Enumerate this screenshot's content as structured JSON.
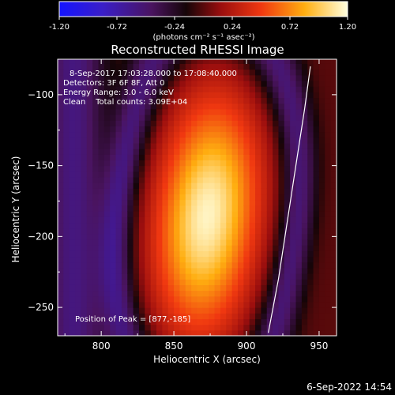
{
  "colorbar": {
    "tick_labels": [
      "-1.20",
      "-0.72",
      "-0.24",
      "0.24",
      "0.72",
      "1.20"
    ],
    "units_label": "(photons cm⁻² s⁻¹ asec⁻²)"
  },
  "chart_data": {
    "type": "heatmap",
    "title": "Reconstructed RHESSI Image",
    "xlabel": "Heliocentric X (arcsec)",
    "ylabel": "Heliocentric Y (arcsec)",
    "xlim": [
      770,
      962
    ],
    "ylim": [
      -270,
      -75
    ],
    "x_ticks": [
      800,
      850,
      900,
      950
    ],
    "y_ticks": [
      -100,
      -150,
      -200,
      -250
    ],
    "x_tick_labels": [
      "800",
      "850",
      "900",
      "950"
    ],
    "y_tick_labels": [
      "−100",
      "−150",
      "−200",
      "−250"
    ],
    "colorbar_range": [
      -1.2,
      1.2
    ],
    "colormap": "blue-purple-red-yellow-white",
    "peak": [
      877,
      -185
    ],
    "info_lines": [
      "8-Sep-2017 17:03:28.000 to 17:08:40.000",
      "Detectors: 3F 6F 8F, Att 0",
      "Energy Range: 3.0 - 6.0 keV",
      "Clean    Total counts: 3.09E+04"
    ],
    "peak_label": "Position of Peak = [877,-185]",
    "limb_curve": [
      [
        944,
        -80
      ],
      [
        940,
        -110
      ],
      [
        934,
        -150
      ],
      [
        928,
        -190
      ],
      [
        922,
        -230
      ],
      [
        915,
        -268
      ]
    ]
  },
  "timestamp": "6-Sep-2022 14:54"
}
